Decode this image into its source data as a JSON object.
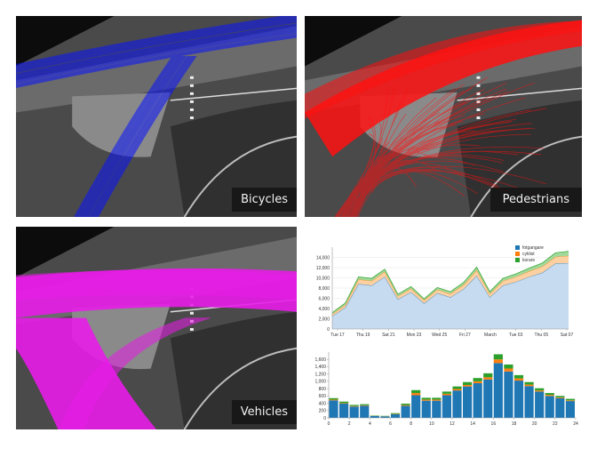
{
  "panels": [
    {
      "id": "bikes",
      "label": "Bicycles",
      "color": "#0a14ff"
    },
    {
      "id": "peds",
      "label": "Pedestrians",
      "color": "#ff1010"
    },
    {
      "id": "veh",
      "label": "Vehicles",
      "color": "#e81ce8"
    }
  ],
  "chart_data": [
    {
      "type": "area",
      "stacked": true,
      "x_tick_labels": [
        "Tue 17",
        "Thu 19",
        "Sat 21",
        "Mon 23",
        "Wed 25",
        "Fri 27",
        "March",
        "Tue 03",
        "Thu 05",
        "Sat 07"
      ],
      "ylim": [
        0,
        16000
      ],
      "y_ticks": [
        0,
        2000,
        4000,
        6000,
        8000,
        10000,
        12000,
        14000
      ],
      "y_tick_labels": [
        "0",
        "2,000",
        "4,000",
        "6,000",
        "8,000",
        "10,000",
        "12,000",
        "14,000"
      ],
      "legend_position": "top-right",
      "series": [
        {
          "name": "fotgangare",
          "color": "#1f77b4",
          "fill": "#c6dbef",
          "values": [
            2500,
            4200,
            8800,
            8500,
            10200,
            5800,
            7200,
            5000,
            7000,
            6200,
            7800,
            10400,
            6200,
            8500,
            9200,
            10200,
            11000,
            12800,
            12900
          ]
        },
        {
          "name": "cyklist",
          "color": "#ff7f0e",
          "fill": "#fdd0a2",
          "values": [
            400,
            500,
            900,
            900,
            1000,
            600,
            700,
            600,
            700,
            700,
            800,
            1100,
            700,
            900,
            1000,
            1100,
            1200,
            1300,
            1400
          ]
        },
        {
          "name": "korare",
          "color": "#2ca02c",
          "fill": "#a1d99b",
          "values": [
            300,
            400,
            500,
            500,
            500,
            400,
            400,
            300,
            400,
            400,
            500,
            600,
            400,
            500,
            600,
            600,
            700,
            800,
            900
          ]
        }
      ]
    },
    {
      "type": "bar",
      "stacked": true,
      "x": [
        0,
        1,
        2,
        3,
        4,
        5,
        6,
        7,
        8,
        9,
        10,
        11,
        12,
        13,
        14,
        15,
        16,
        17,
        18,
        19,
        20,
        21,
        22,
        23
      ],
      "x_ticks": [
        0,
        2,
        4,
        6,
        8,
        10,
        12,
        14,
        16,
        18,
        20,
        22,
        24
      ],
      "xlim": [
        0,
        24
      ],
      "ylim": [
        0,
        1800
      ],
      "y_ticks": [
        0,
        200,
        400,
        600,
        800,
        1000,
        1200,
        1400,
        1600
      ],
      "y_tick_labels": [
        "0",
        "200",
        "400",
        "600",
        "800",
        "1,000",
        "1,200",
        "1,400",
        "1,600"
      ],
      "series": [
        {
          "name": "fotgangare",
          "color": "#1f77b4",
          "values": [
            480,
            390,
            310,
            330,
            50,
            40,
            100,
            330,
            620,
            470,
            470,
            620,
            750,
            860,
            950,
            1050,
            1500,
            1270,
            1020,
            870,
            720,
            600,
            540,
            460
          ]
        },
        {
          "name": "cyklist",
          "color": "#ff7f0e",
          "values": [
            20,
            15,
            15,
            15,
            5,
            5,
            10,
            20,
            60,
            30,
            30,
            40,
            40,
            40,
            50,
            60,
            100,
            80,
            60,
            40,
            30,
            30,
            20,
            20
          ]
        },
        {
          "name": "korare",
          "color": "#2ca02c",
          "values": [
            40,
            40,
            30,
            30,
            10,
            10,
            20,
            40,
            80,
            50,
            50,
            60,
            70,
            80,
            90,
            110,
            140,
            110,
            90,
            70,
            60,
            50,
            40,
            40
          ]
        }
      ]
    }
  ]
}
